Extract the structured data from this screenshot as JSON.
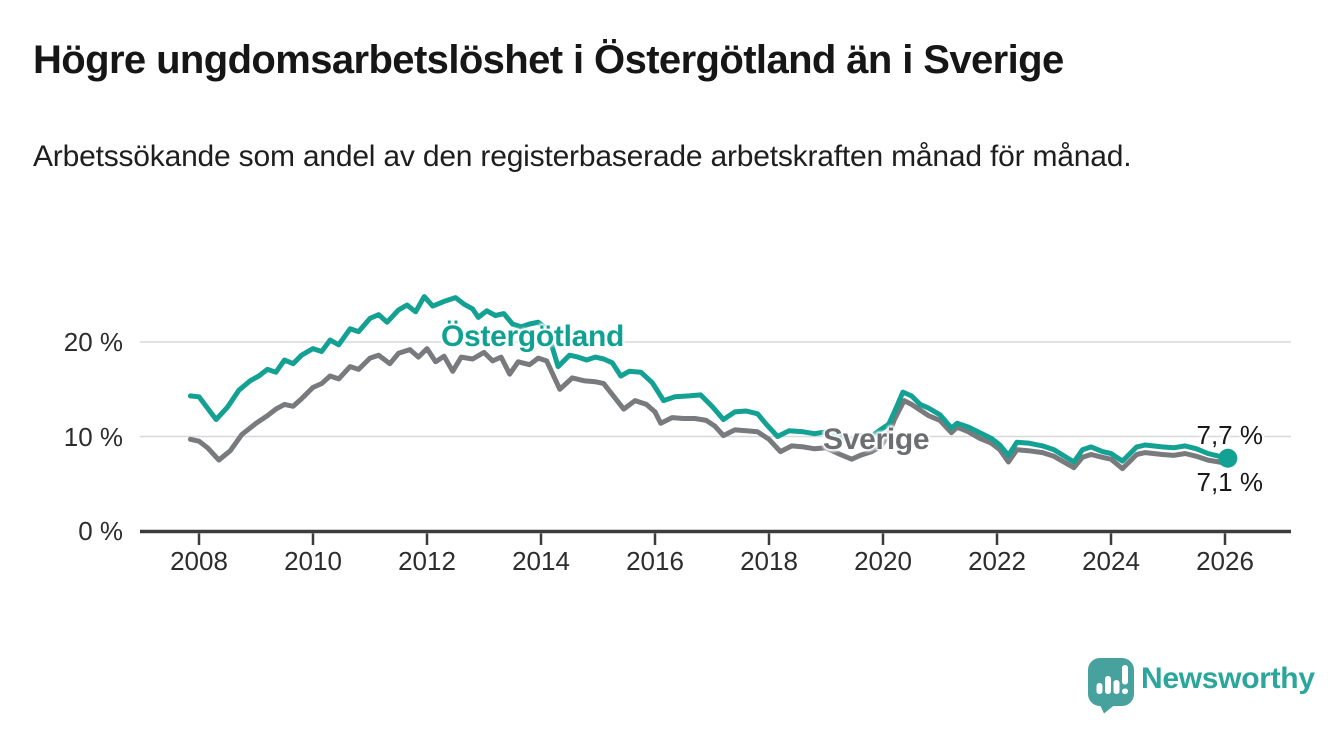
{
  "title": "Högre ungdomsarbetslöshet i Östergötland än i Sverige",
  "subtitle": "Arbetssökande som andel av den registerbaserade arbetskraften månad för månad.",
  "branding": {
    "logo_text": "Newsworthy",
    "logo_icon": "speech-bubble-bar-chart",
    "accent_color": "#2ba69b"
  },
  "chart_data": {
    "type": "line",
    "unit": "%",
    "grid": true,
    "x_ticks": [
      2008,
      2010,
      2012,
      2014,
      2016,
      2018,
      2020,
      2022,
      2024,
      2026
    ],
    "x_range": [
      2007.0,
      2027.1
    ],
    "y_ticks": [
      {
        "value": 0,
        "label": "0 %"
      },
      {
        "value": 10,
        "label": "10 %"
      },
      {
        "value": 20,
        "label": "20 %"
      }
    ],
    "y_range": [
      0,
      26.5
    ],
    "series": [
      {
        "name": "Östergötland",
        "color": "#12a192",
        "end_label": "7,7 %",
        "end_value": 7.7,
        "end_dot": true,
        "points": [
          [
            2007.85,
            14.3
          ],
          [
            2008.0,
            14.2
          ],
          [
            2008.1,
            13.4
          ],
          [
            2008.3,
            11.8
          ],
          [
            2008.5,
            13.1
          ],
          [
            2008.7,
            14.9
          ],
          [
            2008.9,
            15.9
          ],
          [
            2009.05,
            16.4
          ],
          [
            2009.2,
            17.1
          ],
          [
            2009.35,
            16.8
          ],
          [
            2009.5,
            18.1
          ],
          [
            2009.65,
            17.7
          ],
          [
            2009.8,
            18.6
          ],
          [
            2010.0,
            19.3
          ],
          [
            2010.15,
            19.0
          ],
          [
            2010.3,
            20.2
          ],
          [
            2010.45,
            19.7
          ],
          [
            2010.65,
            21.4
          ],
          [
            2010.8,
            21.1
          ],
          [
            2011.0,
            22.5
          ],
          [
            2011.15,
            22.9
          ],
          [
            2011.3,
            22.1
          ],
          [
            2011.5,
            23.4
          ],
          [
            2011.65,
            23.9
          ],
          [
            2011.8,
            23.2
          ],
          [
            2011.95,
            24.8
          ],
          [
            2012.1,
            23.8
          ],
          [
            2012.3,
            24.3
          ],
          [
            2012.5,
            24.7
          ],
          [
            2012.65,
            24.0
          ],
          [
            2012.8,
            23.5
          ],
          [
            2012.9,
            22.6
          ],
          [
            2013.05,
            23.3
          ],
          [
            2013.2,
            22.8
          ],
          [
            2013.35,
            23.0
          ],
          [
            2013.5,
            21.9
          ],
          [
            2013.65,
            21.6
          ],
          [
            2013.8,
            21.9
          ],
          [
            2013.95,
            22.1
          ],
          [
            2014.1,
            21.4
          ],
          [
            2014.3,
            17.4
          ],
          [
            2014.5,
            18.6
          ],
          [
            2014.65,
            18.4
          ],
          [
            2014.8,
            18.1
          ],
          [
            2014.95,
            18.4
          ],
          [
            2015.1,
            18.2
          ],
          [
            2015.25,
            17.8
          ],
          [
            2015.4,
            16.4
          ],
          [
            2015.55,
            16.9
          ],
          [
            2015.75,
            16.8
          ],
          [
            2015.95,
            15.7
          ],
          [
            2016.15,
            13.8
          ],
          [
            2016.35,
            14.2
          ],
          [
            2016.6,
            14.3
          ],
          [
            2016.8,
            14.4
          ],
          [
            2017.0,
            13.2
          ],
          [
            2017.2,
            11.8
          ],
          [
            2017.4,
            12.6
          ],
          [
            2017.6,
            12.7
          ],
          [
            2017.8,
            12.4
          ],
          [
            2017.95,
            11.3
          ],
          [
            2018.15,
            10.0
          ],
          [
            2018.35,
            10.6
          ],
          [
            2018.6,
            10.5
          ],
          [
            2018.8,
            10.3
          ],
          [
            2019.0,
            10.5
          ],
          [
            2019.2,
            10.1
          ],
          [
            2019.4,
            9.6
          ],
          [
            2019.6,
            10.1
          ],
          [
            2019.8,
            10.0
          ],
          [
            2019.95,
            10.7
          ],
          [
            2020.1,
            11.3
          ],
          [
            2020.2,
            12.6
          ],
          [
            2020.35,
            14.7
          ],
          [
            2020.5,
            14.3
          ],
          [
            2020.65,
            13.4
          ],
          [
            2020.8,
            13.0
          ],
          [
            2021.0,
            12.3
          ],
          [
            2021.2,
            10.9
          ],
          [
            2021.3,
            11.4
          ],
          [
            2021.5,
            11.0
          ],
          [
            2021.7,
            10.4
          ],
          [
            2021.9,
            9.8
          ],
          [
            2022.05,
            9.1
          ],
          [
            2022.2,
            8.0
          ],
          [
            2022.35,
            9.4
          ],
          [
            2022.55,
            9.3
          ],
          [
            2022.8,
            9.0
          ],
          [
            2023.0,
            8.6
          ],
          [
            2023.35,
            7.3
          ],
          [
            2023.5,
            8.6
          ],
          [
            2023.65,
            8.9
          ],
          [
            2023.85,
            8.4
          ],
          [
            2024.0,
            8.2
          ],
          [
            2024.2,
            7.4
          ],
          [
            2024.45,
            8.9
          ],
          [
            2024.6,
            9.1
          ],
          [
            2024.9,
            8.9
          ],
          [
            2025.1,
            8.8
          ],
          [
            2025.3,
            9.0
          ],
          [
            2025.5,
            8.7
          ],
          [
            2025.7,
            8.2
          ],
          [
            2025.9,
            7.9
          ],
          [
            2026.05,
            7.7
          ]
        ]
      },
      {
        "name": "Sverige",
        "color": "#797a7d",
        "end_label": "7,1 %",
        "end_value": 7.1,
        "end_dot": false,
        "points": [
          [
            2007.85,
            9.7
          ],
          [
            2008.0,
            9.5
          ],
          [
            2008.15,
            8.8
          ],
          [
            2008.35,
            7.5
          ],
          [
            2008.55,
            8.5
          ],
          [
            2008.75,
            10.2
          ],
          [
            2009.0,
            11.4
          ],
          [
            2009.2,
            12.2
          ],
          [
            2009.35,
            12.9
          ],
          [
            2009.5,
            13.4
          ],
          [
            2009.65,
            13.2
          ],
          [
            2009.8,
            14.0
          ],
          [
            2010.0,
            15.2
          ],
          [
            2010.15,
            15.6
          ],
          [
            2010.3,
            16.4
          ],
          [
            2010.45,
            16.1
          ],
          [
            2010.65,
            17.4
          ],
          [
            2010.8,
            17.1
          ],
          [
            2011.0,
            18.3
          ],
          [
            2011.15,
            18.6
          ],
          [
            2011.35,
            17.7
          ],
          [
            2011.5,
            18.8
          ],
          [
            2011.7,
            19.2
          ],
          [
            2011.85,
            18.4
          ],
          [
            2012.0,
            19.3
          ],
          [
            2012.15,
            17.9
          ],
          [
            2012.3,
            18.5
          ],
          [
            2012.45,
            16.9
          ],
          [
            2012.6,
            18.4
          ],
          [
            2012.8,
            18.2
          ],
          [
            2013.0,
            18.9
          ],
          [
            2013.15,
            18.0
          ],
          [
            2013.3,
            18.4
          ],
          [
            2013.45,
            16.6
          ],
          [
            2013.6,
            17.9
          ],
          [
            2013.8,
            17.6
          ],
          [
            2013.95,
            18.3
          ],
          [
            2014.1,
            18.0
          ],
          [
            2014.33,
            15.0
          ],
          [
            2014.55,
            16.2
          ],
          [
            2014.75,
            15.9
          ],
          [
            2014.95,
            15.8
          ],
          [
            2015.1,
            15.6
          ],
          [
            2015.45,
            12.9
          ],
          [
            2015.65,
            13.8
          ],
          [
            2015.85,
            13.4
          ],
          [
            2016.0,
            12.6
          ],
          [
            2016.1,
            11.4
          ],
          [
            2016.3,
            12.0
          ],
          [
            2016.5,
            11.9
          ],
          [
            2016.7,
            11.9
          ],
          [
            2016.9,
            11.7
          ],
          [
            2017.05,
            11.1
          ],
          [
            2017.2,
            10.1
          ],
          [
            2017.4,
            10.7
          ],
          [
            2017.6,
            10.6
          ],
          [
            2017.8,
            10.5
          ],
          [
            2018.0,
            9.7
          ],
          [
            2018.2,
            8.4
          ],
          [
            2018.4,
            9.0
          ],
          [
            2018.6,
            8.9
          ],
          [
            2018.8,
            8.7
          ],
          [
            2019.0,
            8.8
          ],
          [
            2019.25,
            8.1
          ],
          [
            2019.45,
            7.6
          ],
          [
            2019.6,
            8.0
          ],
          [
            2019.8,
            8.4
          ],
          [
            2019.95,
            8.9
          ],
          [
            2020.1,
            10.2
          ],
          [
            2020.2,
            11.8
          ],
          [
            2020.37,
            13.8
          ],
          [
            2020.5,
            13.4
          ],
          [
            2020.65,
            12.8
          ],
          [
            2020.8,
            12.2
          ],
          [
            2021.0,
            11.7
          ],
          [
            2021.2,
            10.4
          ],
          [
            2021.3,
            11.0
          ],
          [
            2021.5,
            10.5
          ],
          [
            2021.7,
            9.8
          ],
          [
            2021.9,
            9.3
          ],
          [
            2022.05,
            8.6
          ],
          [
            2022.2,
            7.3
          ],
          [
            2022.35,
            8.6
          ],
          [
            2022.55,
            8.5
          ],
          [
            2022.8,
            8.3
          ],
          [
            2023.0,
            7.9
          ],
          [
            2023.35,
            6.7
          ],
          [
            2023.5,
            7.8
          ],
          [
            2023.65,
            8.1
          ],
          [
            2023.85,
            7.8
          ],
          [
            2024.0,
            7.6
          ],
          [
            2024.2,
            6.6
          ],
          [
            2024.45,
            8.1
          ],
          [
            2024.6,
            8.3
          ],
          [
            2024.9,
            8.1
          ],
          [
            2025.1,
            8.0
          ],
          [
            2025.3,
            8.2
          ],
          [
            2025.5,
            7.9
          ],
          [
            2025.7,
            7.5
          ],
          [
            2025.9,
            7.3
          ],
          [
            2026.05,
            7.1
          ]
        ]
      }
    ],
    "colors": {
      "grid": "#d8d8d8",
      "axis": "#3c3c3c"
    }
  }
}
